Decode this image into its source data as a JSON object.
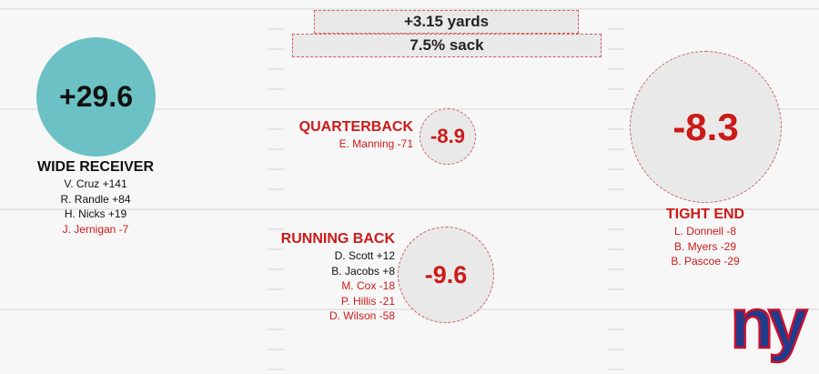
{
  "top_stats": {
    "yards": "+3.15 yards",
    "sack": "7.5% sack"
  },
  "wide_receiver": {
    "value": "+29.6",
    "title": "WIDE RECEIVER",
    "players": [
      {
        "text": "V. Cruz +141",
        "sign": "pos"
      },
      {
        "text": "R. Randle +84",
        "sign": "pos"
      },
      {
        "text": "H. Nicks +19",
        "sign": "pos"
      },
      {
        "text": "J. Jernigan -7",
        "sign": "neg"
      }
    ]
  },
  "quarterback": {
    "value": "-8.9",
    "title": "QUARTERBACK",
    "players": [
      {
        "text": "E. Manning -71",
        "sign": "neg"
      }
    ]
  },
  "running_back": {
    "value": "-9.6",
    "title": "RUNNING BACK",
    "players": [
      {
        "text": "D. Scott +12",
        "sign": "pos"
      },
      {
        "text": "B. Jacobs +8",
        "sign": "pos"
      },
      {
        "text": "M. Cox -18",
        "sign": "neg"
      },
      {
        "text": "P. Hillis -21",
        "sign": "neg"
      },
      {
        "text": "D. Wilson -58",
        "sign": "neg"
      }
    ]
  },
  "tight_end": {
    "value": "-8.3",
    "title": "TIGHT END",
    "players": [
      {
        "text": "L. Donnell -8",
        "sign": "neg"
      },
      {
        "text": "B. Myers -29",
        "sign": "neg"
      },
      {
        "text": "B. Pascoe -29",
        "sign": "neg"
      }
    ]
  },
  "colors": {
    "positive_circle": "#6cc1c4",
    "negative_text": "#cc1a1a",
    "logo_blue": "#1f3c8c",
    "logo_red": "#c8102e"
  },
  "logo": {
    "icon": "ny-giants-logo-icon",
    "text": "ny"
  }
}
